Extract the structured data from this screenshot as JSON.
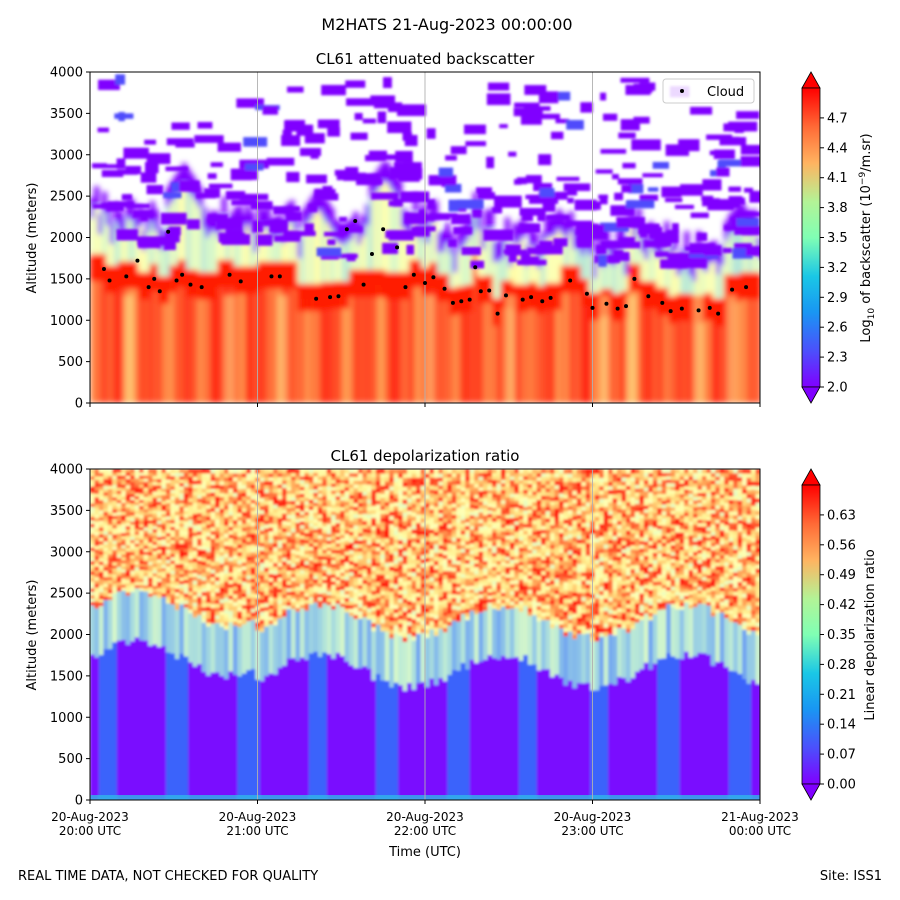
{
  "figure": {
    "title": "M2HATS 21-Aug-2023 00:00:00",
    "footer_left": "REAL TIME DATA, NOT CHECKED FOR QUALITY",
    "footer_right": "Site: ISS1",
    "xlabel": "Time (UTC)"
  },
  "chart_data": [
    {
      "type": "heatmap",
      "title": "CL61 attenuated backscatter",
      "ylabel": "Altitude (meters)",
      "ylim": [
        0,
        4000
      ],
      "yticks": [
        "0",
        "500",
        "1000",
        "1500",
        "2000",
        "2500",
        "3000",
        "3500",
        "4000"
      ],
      "xticks_shown": false,
      "colorbar": {
        "label_prefix": "Log",
        "label_sub": "10",
        "label_mid": " of backscatter (10",
        "label_sup": "−9",
        "label_suffix": "/m.sr)",
        "range": [
          2.0,
          5.0
        ],
        "ticks": [
          "2.0",
          "2.3",
          "2.6",
          "2.9",
          "3.2",
          "3.5",
          "3.8",
          "4.1",
          "4.4",
          "4.7"
        ],
        "extend": "both",
        "colormap": "rainbow"
      },
      "legend": {
        "entries": [
          "Cloud"
        ],
        "placement": "top-right"
      },
      "series": [
        {
          "name": "Cloud",
          "marker": "dot",
          "color": "#000000",
          "time_utc": [
            "20:05",
            "20:07",
            "20:13",
            "20:17",
            "20:21",
            "20:23",
            "20:25",
            "20:28",
            "20:31",
            "20:33",
            "20:36",
            "20:40",
            "20:50",
            "20:54",
            "21:05",
            "21:08",
            "21:21",
            "21:26",
            "21:29",
            "21:32",
            "21:35",
            "21:38",
            "21:41",
            "21:45",
            "21:50",
            "21:53",
            "21:56",
            "22:00",
            "22:03",
            "22:07",
            "22:10",
            "22:13",
            "22:16",
            "22:18",
            "22:20",
            "22:23",
            "22:26",
            "22:29",
            "22:35",
            "22:38",
            "22:42",
            "22:45",
            "22:52",
            "22:58",
            "23:00",
            "23:05",
            "23:09",
            "23:12",
            "23:15",
            "23:20",
            "23:25",
            "23:28",
            "23:32",
            "23:38",
            "23:42",
            "23:45",
            "23:50",
            "23:55"
          ],
          "altitude_m": [
            1620,
            1480,
            1530,
            1720,
            1400,
            1500,
            1350,
            2070,
            1480,
            1550,
            1430,
            1400,
            1550,
            1470,
            1530,
            1530,
            1260,
            1280,
            1290,
            2100,
            2200,
            1430,
            1800,
            2100,
            1880,
            1400,
            1550,
            1450,
            1520,
            1380,
            1210,
            1230,
            1250,
            1640,
            1350,
            1360,
            1080,
            1300,
            1250,
            1280,
            1230,
            1270,
            1480,
            1320,
            1150,
            1200,
            1140,
            1170,
            1500,
            1290,
            1210,
            1110,
            1140,
            1120,
            1150,
            1080,
            1370,
            1400
          ]
        }
      ]
    },
    {
      "type": "heatmap",
      "title": "CL61 depolarization ratio",
      "ylabel": "Altitude (meters)",
      "ylim": [
        0,
        4000
      ],
      "yticks": [
        "0",
        "500",
        "1000",
        "1500",
        "2000",
        "2500",
        "3000",
        "3500",
        "4000"
      ],
      "x": [
        "20-Aug-2023\n20:00 UTC",
        "20-Aug-2023\n21:00 UTC",
        "20-Aug-2023\n22:00 UTC",
        "20-Aug-2023\n23:00 UTC",
        "21-Aug-2023\n00:00 UTC"
      ],
      "xticks_top": [
        "20-Aug-2023",
        "20-Aug-2023",
        "20-Aug-2023",
        "20-Aug-2023",
        "21-Aug-2023"
      ],
      "xticks_bottom": [
        "20:00 UTC",
        "21:00 UTC",
        "22:00 UTC",
        "23:00 UTC",
        "00:00 UTC"
      ],
      "colorbar": {
        "label": "Linear depolarization ratio",
        "range": [
          0.0,
          0.7
        ],
        "ticks": [
          "0.00",
          "0.07",
          "0.14",
          "0.21",
          "0.28",
          "0.35",
          "0.42",
          "0.49",
          "0.56",
          "0.63"
        ],
        "extend": "both",
        "colormap": "rainbow"
      }
    }
  ]
}
